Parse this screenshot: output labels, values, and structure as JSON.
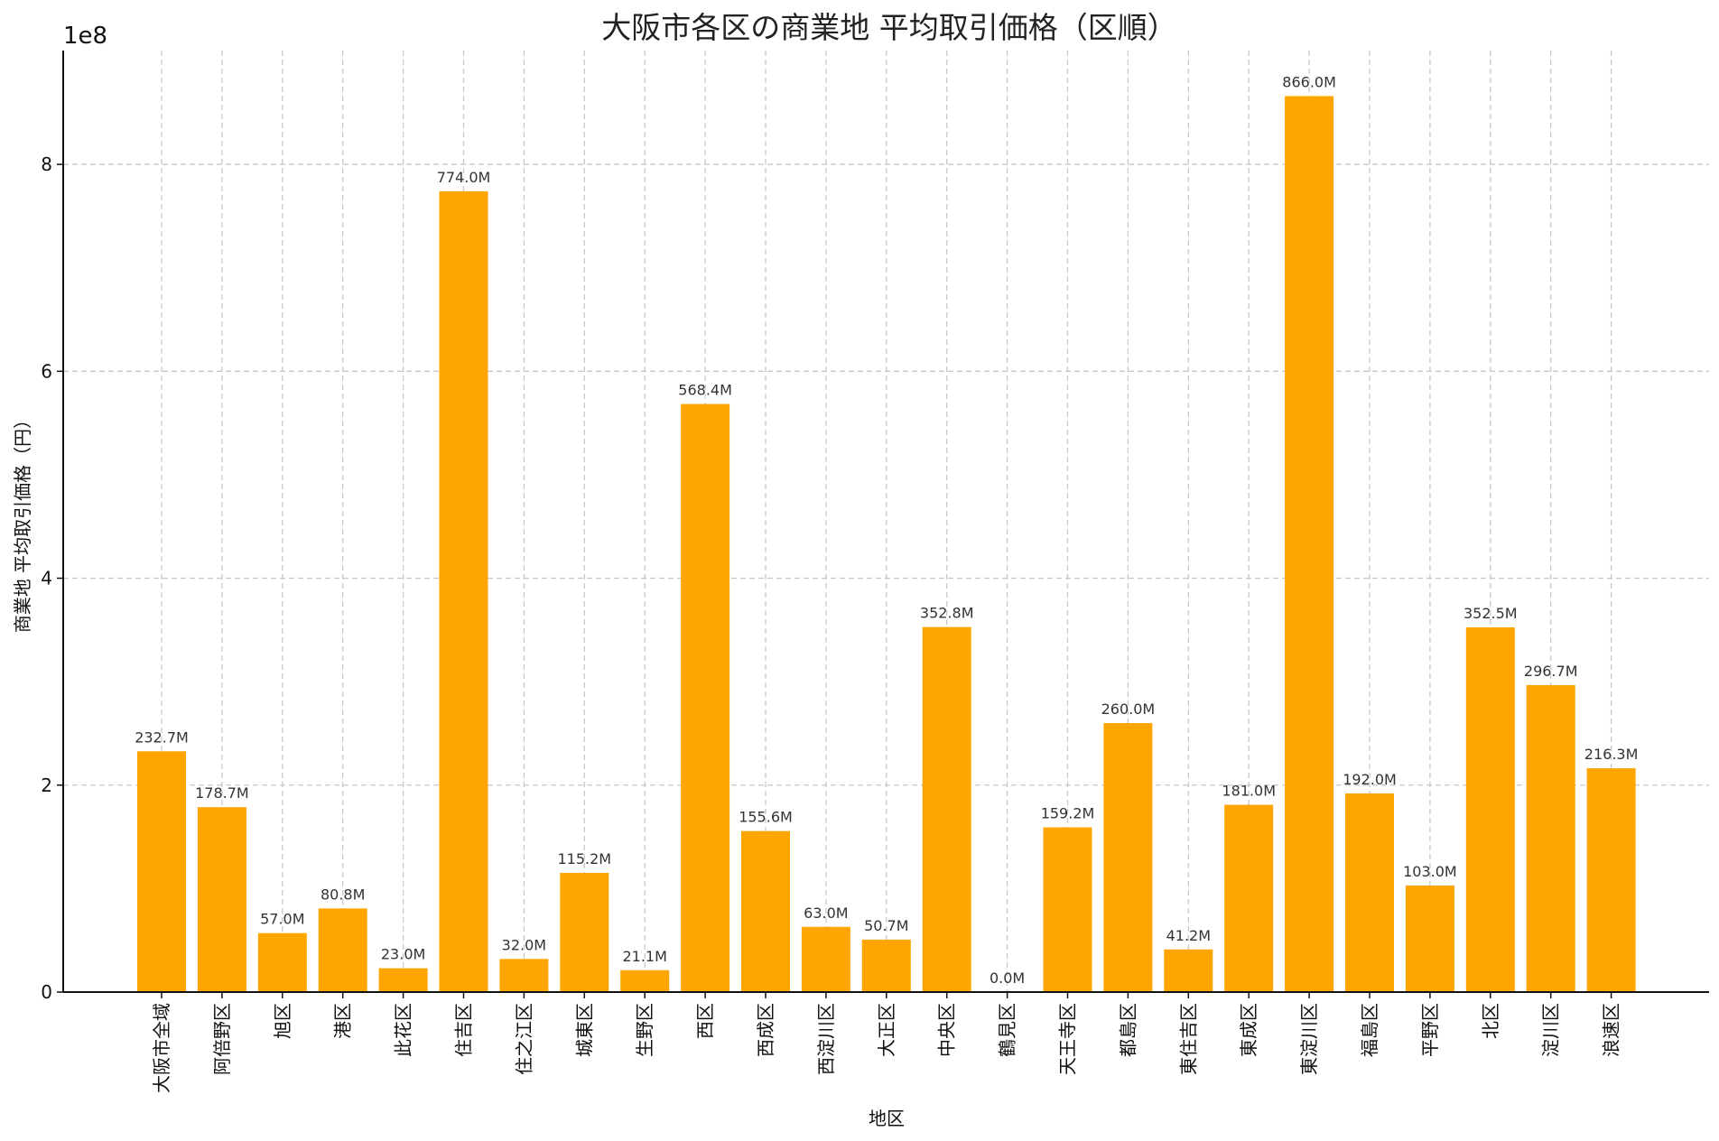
{
  "chart_data": {
    "type": "bar",
    "title": "大阪市各区の商業地 平均取引価格（区順）",
    "xlabel": "地区",
    "ylabel": "商業地 平均取引価格（円）",
    "y_offset_label": "1e8",
    "ylim": [
      0,
      9.1
    ],
    "yticks": [
      0,
      2,
      4,
      6,
      8
    ],
    "grid": true,
    "bar_color": "#FFA500",
    "categories": [
      "大阪市全域",
      "阿倍野区",
      "旭区",
      "港区",
      "此花区",
      "住吉区",
      "住之江区",
      "城東区",
      "生野区",
      "西区",
      "西成区",
      "西淀川区",
      "大正区",
      "中央区",
      "鶴見区",
      "天王寺区",
      "都島区",
      "東住吉区",
      "東成区",
      "東淀川区",
      "福島区",
      "平野区",
      "北区",
      "淀川区",
      "浪速区"
    ],
    "values": [
      2.327,
      1.787,
      0.57,
      0.808,
      0.23,
      7.74,
      0.32,
      1.152,
      0.211,
      5.684,
      1.556,
      0.63,
      0.507,
      3.528,
      0.0,
      1.592,
      2.6,
      0.412,
      1.81,
      8.66,
      1.92,
      1.03,
      3.525,
      2.967,
      2.163
    ],
    "data_labels": [
      "232.7M",
      "178.7M",
      "57.0M",
      "80.8M",
      "23.0M",
      "774.0M",
      "32.0M",
      "115.2M",
      "21.1M",
      "568.4M",
      "155.6M",
      "63.0M",
      "50.7M",
      "352.8M",
      "0.0M",
      "159.2M",
      "260.0M",
      "41.2M",
      "181.0M",
      "866.0M",
      "192.0M",
      "103.0M",
      "352.5M",
      "296.7M",
      "216.3M"
    ]
  }
}
